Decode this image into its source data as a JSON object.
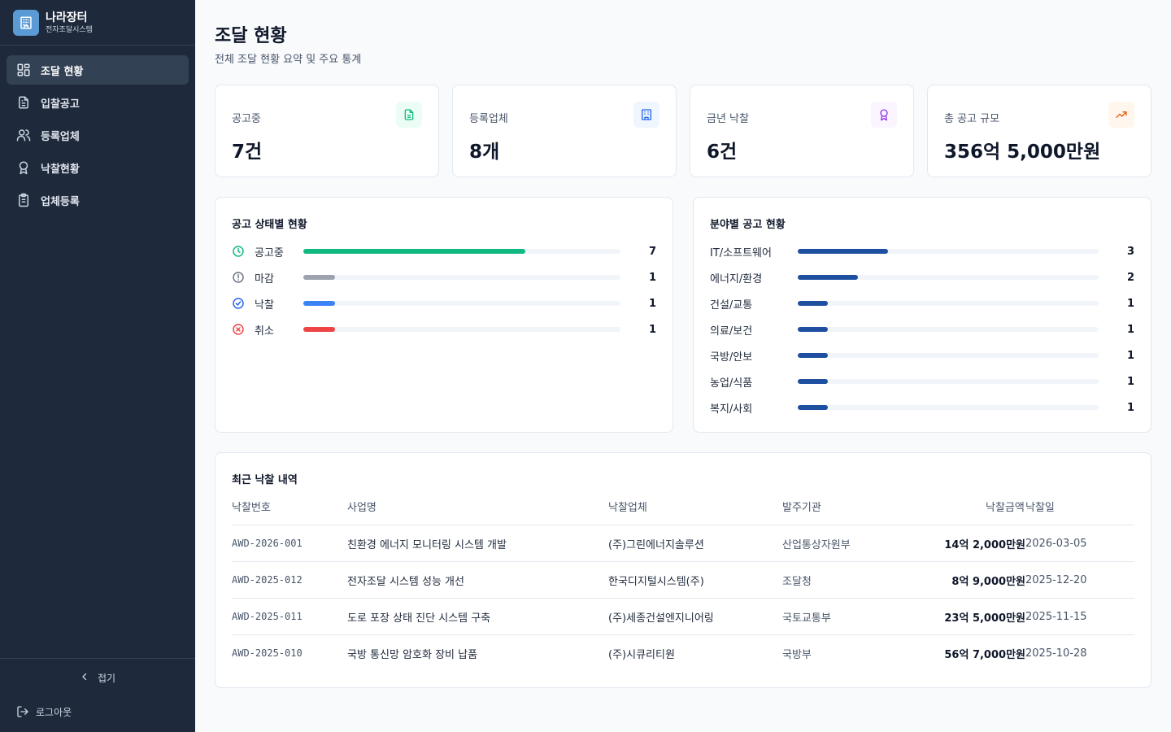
{
  "brand": {
    "title": "나라장터",
    "subtitle": "전자조달시스템",
    "color": "#5b9bd5"
  },
  "nav": [
    {
      "label": "조달 현황",
      "icon": "dashboard-icon",
      "active": true
    },
    {
      "label": "입찰공고",
      "icon": "document-icon",
      "active": false
    },
    {
      "label": "등록업체",
      "icon": "users-icon",
      "active": false
    },
    {
      "label": "낙찰현황",
      "icon": "award-icon",
      "active": false
    },
    {
      "label": "업체등록",
      "icon": "clipboard-icon",
      "active": false
    }
  ],
  "sidebar_footer": {
    "collapse_label": "접기",
    "logout_label": "로그아웃"
  },
  "page": {
    "title": "조달 현황",
    "subtitle": "전체 조달 현황 요약 및 주요 통계"
  },
  "stats": [
    {
      "label": "공고중",
      "value": "7건",
      "icon": "document-icon",
      "color": "#10b981"
    },
    {
      "label": "등록업체",
      "value": "8개",
      "icon": "building-icon",
      "color": "#2563eb"
    },
    {
      "label": "금년 낙찰",
      "value": "6건",
      "icon": "award-icon",
      "color": "#9333ea"
    },
    {
      "label": "총 공고 규모",
      "value": "356억 5,000만원",
      "icon": "trending-up-icon",
      "color": "#ea580c"
    }
  ],
  "status_panel": {
    "title": "공고 상태별 현황",
    "max": 10,
    "items": [
      {
        "label": "공고중",
        "count": 7,
        "color": "#10b981",
        "icon": "clock-icon"
      },
      {
        "label": "마감",
        "count": 1,
        "color": "#9ca3af",
        "icon": "alert-circle-icon"
      },
      {
        "label": "낙찰",
        "count": 1,
        "color": "#3b82f6",
        "icon": "check-circle-icon"
      },
      {
        "label": "취소",
        "count": 1,
        "color": "#ef4444",
        "icon": "x-circle-icon"
      }
    ]
  },
  "category_panel": {
    "title": "분야별 공고 현황",
    "max": 10,
    "color": "#1e4fa0",
    "items": [
      {
        "label": "IT/소프트웨어",
        "count": 3
      },
      {
        "label": "에너지/환경",
        "count": 2
      },
      {
        "label": "건설/교통",
        "count": 1
      },
      {
        "label": "의료/보건",
        "count": 1
      },
      {
        "label": "국방/안보",
        "count": 1
      },
      {
        "label": "농업/식품",
        "count": 1
      },
      {
        "label": "복지/사회",
        "count": 1
      }
    ]
  },
  "awards": {
    "title": "최근 낙찰 내역",
    "columns": [
      "낙찰번호",
      "사업명",
      "낙찰업체",
      "발주기관",
      "낙찰금액",
      "낙찰일"
    ],
    "rows": [
      {
        "id": "AWD-2026-001",
        "project": "친환경 에너지 모니터링 시스템 개발",
        "company": "(주)그린에너지솔루션",
        "agency": "산업통상자원부",
        "amount": "14억 2,000만원",
        "date": "2026-03-05"
      },
      {
        "id": "AWD-2025-012",
        "project": "전자조달 시스템 성능 개선",
        "company": "한국디지털시스템(주)",
        "agency": "조달청",
        "amount": "8억 9,000만원",
        "date": "2025-12-20"
      },
      {
        "id": "AWD-2025-011",
        "project": "도로 포장 상태 진단 시스템 구축",
        "company": "(주)세종건설엔지니어링",
        "agency": "국토교통부",
        "amount": "23억 5,000만원",
        "date": "2025-11-15"
      },
      {
        "id": "AWD-2025-010",
        "project": "국방 통신망 암호화 장비 납품",
        "company": "(주)시큐리티원",
        "agency": "국방부",
        "amount": "56억 7,000만원",
        "date": "2025-10-28"
      }
    ]
  }
}
